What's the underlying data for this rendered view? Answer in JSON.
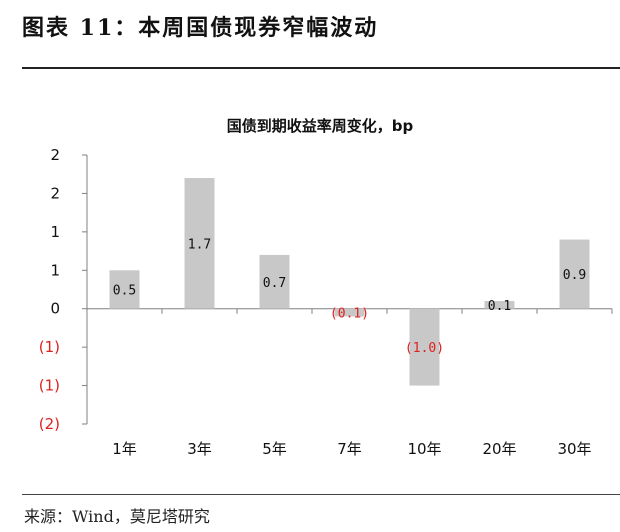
{
  "figure": {
    "title": "图表 11：本周国债现券窄幅波动",
    "source": "来源：Wind，莫尼塔研究"
  },
  "colors": {
    "bar": "#c8c8c8",
    "axis": "#808080",
    "positive_label": "#111111",
    "negative_label": "#e02020"
  },
  "chart_data": {
    "type": "bar",
    "title": "国债到期收益率周变化，bp",
    "categories": [
      "1年",
      "3年",
      "5年",
      "7年",
      "10年",
      "20年",
      "30年"
    ],
    "values": [
      0.5,
      1.7,
      0.7,
      -0.1,
      -1.0,
      0.1,
      0.9
    ],
    "data_labels": [
      "0.5",
      "1.7",
      "0.7",
      "(0.1)",
      "(1.0)",
      "0.1",
      "0.9"
    ],
    "ylim": [
      -1.5,
      2.0
    ],
    "y_ticks": [
      2.0,
      1.5,
      1.0,
      0.5,
      0.0,
      -0.5,
      -1.0,
      -1.5
    ],
    "y_tick_labels": [
      "2",
      "2",
      "1",
      "1",
      "0",
      "(1)",
      "(1)",
      "(2)"
    ],
    "xlabel": "",
    "ylabel": "",
    "grid": false,
    "legend": "none"
  }
}
